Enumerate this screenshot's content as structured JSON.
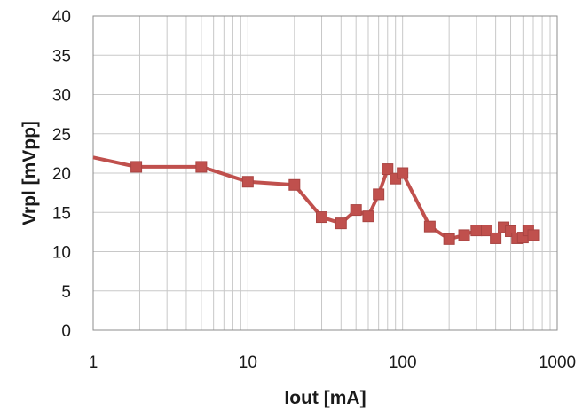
{
  "chart_data": {
    "type": "line",
    "title": "",
    "xlabel": "Iout [mA]",
    "ylabel": "Vrpl [mVpp]",
    "x_scale": "log",
    "xlim": [
      1,
      1000
    ],
    "ylim": [
      0,
      40
    ],
    "x_ticks": [
      1,
      10,
      100,
      1000
    ],
    "x_tick_labels": [
      "1",
      "10",
      "100",
      "1000"
    ],
    "y_ticks": [
      0,
      5,
      10,
      15,
      20,
      25,
      30,
      35,
      40
    ],
    "y_tick_labels": [
      "0",
      "5",
      "10",
      "15",
      "20",
      "25",
      "30",
      "35",
      "40"
    ],
    "grid": true,
    "legend": "none",
    "series": [
      {
        "color": "#c0504d",
        "marker": "square",
        "points": [
          {
            "x": 1,
            "y": 22.0,
            "marker": false
          },
          {
            "x": 1.9,
            "y": 20.8
          },
          {
            "x": 5,
            "y": 20.8
          },
          {
            "x": 10,
            "y": 18.9
          },
          {
            "x": 20,
            "y": 18.5
          },
          {
            "x": 30,
            "y": 14.4
          },
          {
            "x": 40,
            "y": 13.6
          },
          {
            "x": 50,
            "y": 15.3
          },
          {
            "x": 60,
            "y": 14.5
          },
          {
            "x": 70,
            "y": 17.3
          },
          {
            "x": 80,
            "y": 20.5
          },
          {
            "x": 90,
            "y": 19.3
          },
          {
            "x": 100,
            "y": 20.0
          },
          {
            "x": 150,
            "y": 13.2
          },
          {
            "x": 200,
            "y": 11.6
          },
          {
            "x": 250,
            "y": 12.1
          },
          {
            "x": 300,
            "y": 12.7
          },
          {
            "x": 350,
            "y": 12.7
          },
          {
            "x": 400,
            "y": 11.7
          },
          {
            "x": 450,
            "y": 13.1
          },
          {
            "x": 500,
            "y": 12.6
          },
          {
            "x": 550,
            "y": 11.7
          },
          {
            "x": 600,
            "y": 11.8
          },
          {
            "x": 650,
            "y": 12.7
          },
          {
            "x": 700,
            "y": 12.1
          }
        ]
      }
    ]
  }
}
